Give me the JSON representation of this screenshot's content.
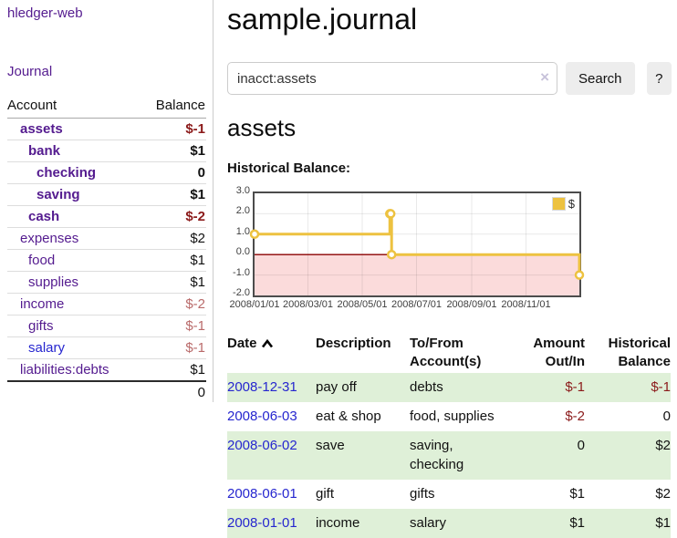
{
  "app": {
    "brand": "hledger-web",
    "nav_journal": "Journal"
  },
  "sidebar": {
    "header": {
      "account": "Account",
      "balance": "Balance"
    },
    "accounts": [
      {
        "name": "assets",
        "indent": 0,
        "bold": true,
        "balance": "$-1",
        "balance_style": "neg"
      },
      {
        "name": "bank",
        "indent": 1,
        "bold": true,
        "balance": "$1",
        "balance_style": ""
      },
      {
        "name": "checking",
        "indent": 2,
        "bold": true,
        "balance": "0",
        "balance_style": ""
      },
      {
        "name": "saving",
        "indent": 2,
        "bold": true,
        "balance": "$1",
        "balance_style": ""
      },
      {
        "name": "cash",
        "indent": 1,
        "bold": true,
        "balance": "$-2",
        "balance_style": "neg"
      },
      {
        "name": "expenses",
        "indent": 0,
        "bold": false,
        "balance": "$2",
        "balance_style": ""
      },
      {
        "name": "food",
        "indent": 1,
        "bold": false,
        "balance": "$1",
        "balance_style": ""
      },
      {
        "name": "supplies",
        "indent": 1,
        "bold": false,
        "balance": "$1",
        "balance_style": ""
      },
      {
        "name": "income",
        "indent": 0,
        "bold": false,
        "balance": "$-2",
        "balance_style": "negmuted"
      },
      {
        "name": "gifts",
        "indent": 1,
        "bold": false,
        "balance": "$-1",
        "balance_style": "negmuted"
      },
      {
        "name": "salary",
        "indent": 1,
        "bold": false,
        "balance": "$-1",
        "balance_style": "negmuted",
        "link_style": "blue"
      },
      {
        "name": "liabilities:debts",
        "indent": 0,
        "bold": false,
        "balance": "$1",
        "balance_style": ""
      }
    ],
    "total": "0"
  },
  "header": {
    "title": "sample.journal"
  },
  "search": {
    "value": "inacct:assets",
    "clear_icon": "×",
    "button": "Search",
    "help_button": "?"
  },
  "account_page": {
    "title": "assets",
    "chart_label": "Historical Balance:"
  },
  "chart_data": {
    "type": "line",
    "step": true,
    "title": "Historical Balance",
    "series": [
      {
        "name": "$",
        "color": "#edc240",
        "points": [
          {
            "date": "2008/01/01",
            "day": 0,
            "value": 1
          },
          {
            "date": "2008/06/01",
            "day": 152,
            "value": 2
          },
          {
            "date": "2008/06/02",
            "day": 153,
            "value": 2
          },
          {
            "date": "2008/06/03",
            "day": 154,
            "value": 0
          },
          {
            "date": "2008/12/31",
            "day": 365,
            "value": -1
          }
        ]
      }
    ],
    "xticks": [
      {
        "label": "2008/01/01",
        "day": 0
      },
      {
        "label": "2008/03/01",
        "day": 60
      },
      {
        "label": "2008/05/01",
        "day": 121
      },
      {
        "label": "2008/07/01",
        "day": 182
      },
      {
        "label": "2008/09/01",
        "day": 244
      },
      {
        "label": "2008/11/01",
        "day": 305
      }
    ],
    "yticks": [
      {
        "label": "3.0",
        "value": 3
      },
      {
        "label": "2.0",
        "value": 2
      },
      {
        "label": "1.0",
        "value": 1
      },
      {
        "label": "0.0",
        "value": 0
      },
      {
        "label": "-1.0",
        "value": -1
      },
      {
        "label": "-2.0",
        "value": -2
      }
    ],
    "ylim": [
      -2,
      3
    ],
    "x_max_day": 365,
    "legend_position": "top-right",
    "legend_label": "$",
    "negative_region_shaded": true
  },
  "register": {
    "columns": [
      "Date",
      "Description",
      "To/From Account(s)",
      "Amount Out/In",
      "Historical Balance"
    ],
    "sort_icon": "chevron-up",
    "rows": [
      {
        "date": "2008-12-31",
        "description": "pay off",
        "accounts": "debts",
        "amount": "$-1",
        "amount_neg": true,
        "balance": "$-1",
        "balance_neg": true
      },
      {
        "date": "2008-06-03",
        "description": "eat & shop",
        "accounts": "food, supplies",
        "amount": "$-2",
        "amount_neg": true,
        "balance": "0",
        "balance_neg": false
      },
      {
        "date": "2008-06-02",
        "description": "save",
        "accounts": "saving, checking",
        "amount": "0",
        "amount_neg": false,
        "balance": "$2",
        "balance_neg": false
      },
      {
        "date": "2008-06-01",
        "description": "gift",
        "accounts": "gifts",
        "amount": "$1",
        "amount_neg": false,
        "balance": "$2",
        "balance_neg": false
      },
      {
        "date": "2008-01-01",
        "description": "income",
        "accounts": "salary",
        "amount": "$1",
        "amount_neg": false,
        "balance": "$1",
        "balance_neg": false
      }
    ]
  },
  "colors": {
    "link_purple": "#541b8f",
    "link_blue": "#2626cf",
    "negative_strong": "#8b1a1a",
    "negative_muted": "#b96a6a",
    "row_green": "#dff0d8",
    "series_gold": "#edc240",
    "chart_negative_fill": "#fbdbdb",
    "chart_zero_line": "#8b0000",
    "chart_border": "#4c4c4c",
    "grid_line": "rgba(0,0,0,0.085)",
    "button_bg": "#ededed"
  }
}
